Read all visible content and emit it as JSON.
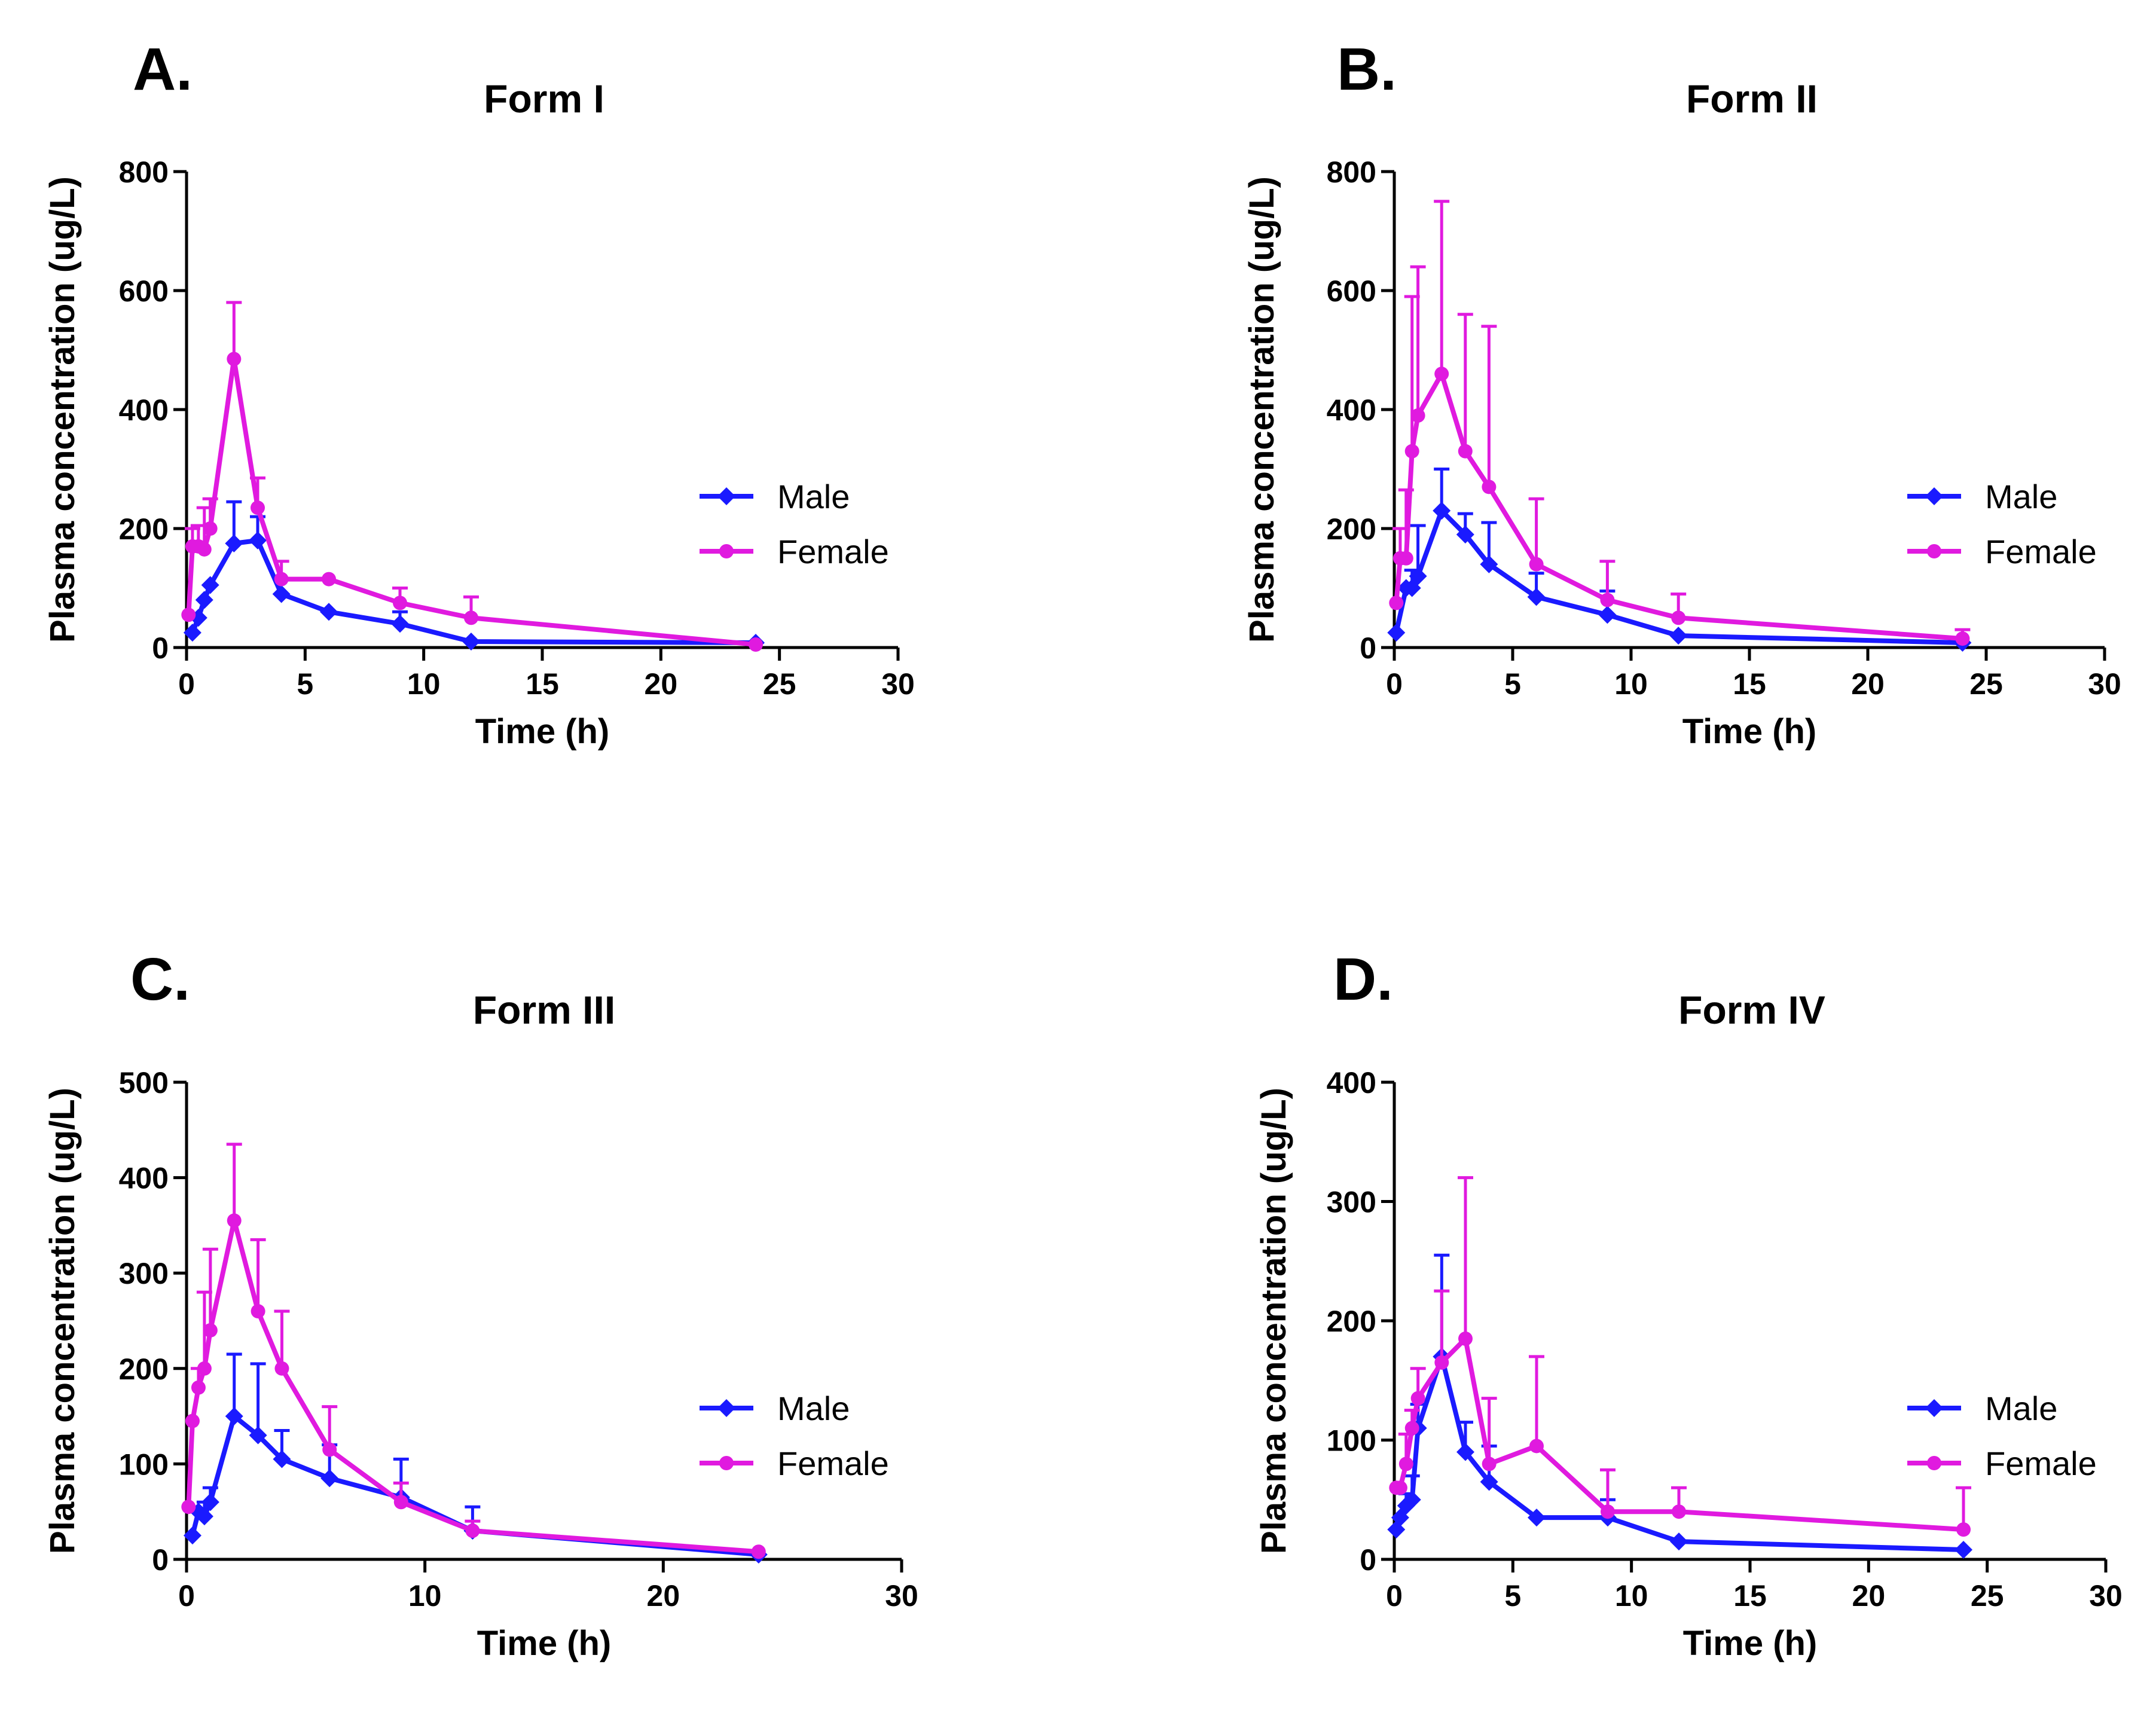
{
  "colors": {
    "male": "#1a1aff",
    "female": "#e01adf"
  },
  "chart_data": [
    {
      "type": "line",
      "panel": "A.",
      "title": "Form I",
      "xlabel": "Time (h)",
      "ylabel": "Plasma concentration (ug/L)",
      "xlim": [
        0,
        30
      ],
      "ylim": [
        0,
        800
      ],
      "xticks": [
        0,
        5,
        10,
        15,
        20,
        25,
        30
      ],
      "yticks": [
        0,
        200,
        400,
        600,
        800
      ],
      "grid": false,
      "legend_position": "right",
      "series": [
        {
          "name": "Male",
          "key": "male",
          "marker": "diamond",
          "x": [
            0.25,
            0.5,
            0.75,
            1,
            2,
            3,
            4,
            6,
            9,
            12,
            24
          ],
          "y": [
            25,
            50,
            80,
            105,
            175,
            180,
            90,
            60,
            40,
            10,
            8
          ],
          "err": [
            0,
            0,
            0,
            0,
            70,
            40,
            0,
            0,
            20,
            0,
            0
          ]
        },
        {
          "name": "Female",
          "key": "female",
          "marker": "circle",
          "x": [
            0.083,
            0.25,
            0.5,
            0.75,
            1,
            2,
            3,
            4,
            6,
            9,
            12,
            24
          ],
          "y": [
            55,
            170,
            170,
            165,
            200,
            485,
            235,
            115,
            115,
            75,
            50,
            5
          ],
          "err": [
            0,
            30,
            35,
            70,
            50,
            95,
            50,
            30,
            0,
            25,
            35,
            0
          ]
        }
      ]
    },
    {
      "type": "line",
      "panel": "B.",
      "title": "Form II",
      "xlabel": "Time (h)",
      "ylabel": "Plasma concentration (ug/L)",
      "xlim": [
        0,
        30
      ],
      "ylim": [
        0,
        800
      ],
      "xticks": [
        0,
        5,
        10,
        15,
        20,
        25,
        30
      ],
      "yticks": [
        0,
        200,
        400,
        600,
        800
      ],
      "grid": false,
      "legend_position": "right",
      "series": [
        {
          "name": "Male",
          "key": "male",
          "marker": "diamond",
          "x": [
            0.083,
            0.5,
            0.75,
            1,
            2,
            3,
            4,
            6,
            9,
            12,
            24
          ],
          "y": [
            25,
            100,
            100,
            120,
            230,
            190,
            140,
            85,
            55,
            20,
            8
          ],
          "err": [
            0,
            0,
            30,
            85,
            70,
            35,
            70,
            40,
            40,
            0,
            0
          ]
        },
        {
          "name": "Female",
          "key": "female",
          "marker": "circle",
          "x": [
            0.083,
            0.25,
            0.5,
            0.75,
            1,
            2,
            3,
            4,
            6,
            9,
            12,
            24
          ],
          "y": [
            75,
            150,
            150,
            330,
            390,
            460,
            330,
            270,
            140,
            80,
            50,
            15
          ],
          "err": [
            0,
            50,
            115,
            260,
            250,
            290,
            230,
            270,
            110,
            65,
            40,
            15
          ]
        }
      ]
    },
    {
      "type": "line",
      "panel": "C.",
      "title": "Form III",
      "xlabel": "Time (h)",
      "ylabel": "Plasma concentration (ug/L)",
      "xlim": [
        0,
        30
      ],
      "ylim": [
        0,
        500
      ],
      "xticks": [
        0,
        10,
        20,
        30
      ],
      "yticks": [
        0,
        100,
        200,
        300,
        400,
        500
      ],
      "grid": false,
      "legend_position": "right",
      "series": [
        {
          "name": "Male",
          "key": "male",
          "marker": "diamond",
          "x": [
            0.25,
            0.5,
            0.75,
            1,
            2,
            3,
            4,
            6,
            9,
            12,
            24
          ],
          "y": [
            25,
            50,
            45,
            60,
            150,
            130,
            105,
            85,
            65,
            30,
            5
          ],
          "err": [
            0,
            0,
            15,
            15,
            65,
            75,
            30,
            35,
            40,
            25,
            0
          ]
        },
        {
          "name": "Female",
          "key": "female",
          "marker": "circle",
          "x": [
            0.083,
            0.25,
            0.5,
            0.75,
            1,
            2,
            3,
            4,
            6,
            9,
            12,
            24
          ],
          "y": [
            55,
            145,
            180,
            200,
            240,
            355,
            260,
            200,
            115,
            60,
            30,
            8
          ],
          "err": [
            0,
            0,
            20,
            80,
            85,
            80,
            75,
            60,
            45,
            20,
            10,
            0
          ]
        }
      ]
    },
    {
      "type": "line",
      "panel": "D.",
      "title": "Form IV",
      "xlabel": "Time (h)",
      "ylabel": "Plasma concentration (ug/L)",
      "xlim": [
        0,
        30
      ],
      "ylim": [
        0,
        400
      ],
      "xticks": [
        0,
        5,
        10,
        15,
        20,
        25,
        30
      ],
      "yticks": [
        0,
        100,
        200,
        300,
        400
      ],
      "grid": false,
      "legend_position": "right",
      "series": [
        {
          "name": "Male",
          "key": "male",
          "marker": "diamond",
          "x": [
            0.083,
            0.25,
            0.5,
            0.75,
            1,
            2,
            3,
            4,
            6,
            9,
            12,
            24
          ],
          "y": [
            25,
            35,
            45,
            50,
            110,
            170,
            90,
            65,
            35,
            35,
            15,
            8
          ],
          "err": [
            0,
            0,
            10,
            20,
            20,
            85,
            25,
            30,
            0,
            15,
            0,
            0
          ]
        },
        {
          "name": "Female",
          "key": "female",
          "marker": "circle",
          "x": [
            0.083,
            0.25,
            0.5,
            0.75,
            1,
            2,
            3,
            4,
            6,
            9,
            12,
            24
          ],
          "y": [
            60,
            60,
            80,
            110,
            135,
            165,
            185,
            80,
            95,
            40,
            40,
            25
          ],
          "err": [
            0,
            0,
            25,
            15,
            25,
            60,
            135,
            55,
            75,
            35,
            20,
            35
          ]
        }
      ]
    }
  ]
}
